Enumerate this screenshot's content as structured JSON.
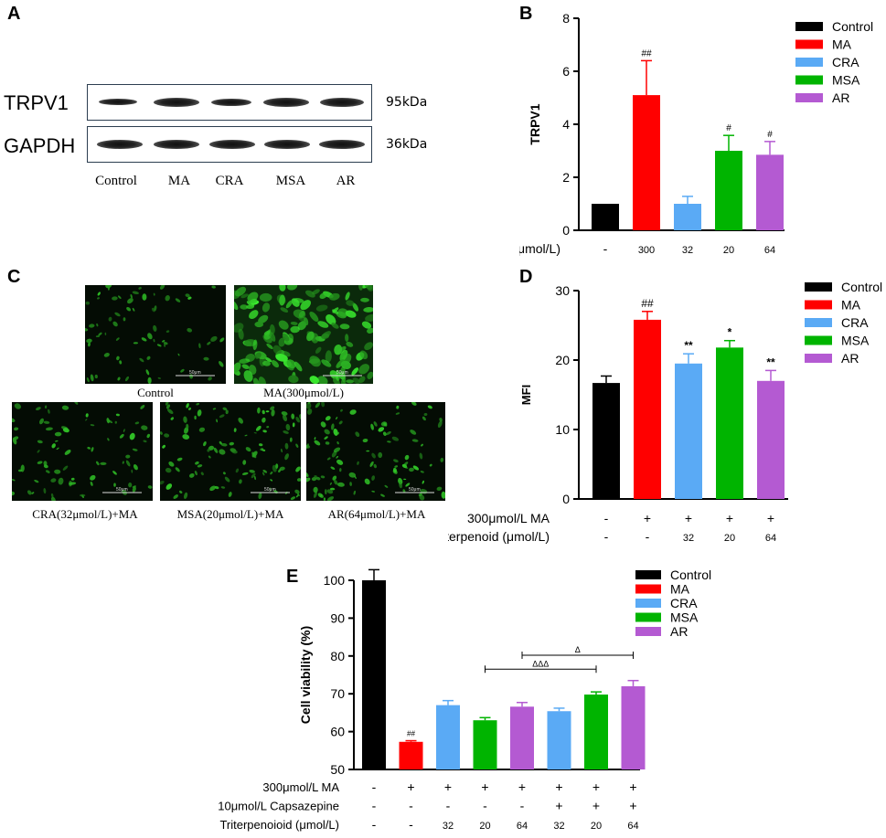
{
  "panels": {
    "a": "A",
    "b": "B",
    "c": "C",
    "d": "D",
    "e": "E"
  },
  "blot": {
    "rows": [
      {
        "label": "TRPV1",
        "kda": "95kDa"
      },
      {
        "label": "GAPDH",
        "kda": "36kDa"
      }
    ],
    "lanes": [
      "Control",
      "MA",
      "CRA",
      "MSA",
      "AR"
    ]
  },
  "micrographs": {
    "captions": [
      "Control",
      "MA(300μmol/L)",
      "CRA(32μmol/L)+MA",
      "MSA(20μmol/L)+MA",
      "AR(64μmol/L)+MA"
    ],
    "scale": "50μm"
  },
  "colors": {
    "Control": "#000000",
    "MA": "#ff0000",
    "CRA": "#5aaaf5",
    "MSA": "#00b400",
    "AR": "#b45ad2"
  },
  "chart_data": [
    {
      "id": "B",
      "type": "bar",
      "ylabel": "TRPV1",
      "ylim": [
        0,
        8
      ],
      "yticks": [
        0,
        2,
        4,
        6,
        8
      ],
      "categories": [
        "Control",
        "MA",
        "CRA",
        "MSA",
        "AR"
      ],
      "values": [
        1.0,
        5.1,
        1.0,
        3.0,
        2.85
      ],
      "errors": [
        0.0,
        1.3,
        0.28,
        0.58,
        0.5
      ],
      "annotations": [
        "",
        "##",
        "",
        "#",
        "#"
      ],
      "row_labels": [
        {
          "label": "c (μmol/L)",
          "values": [
            "-",
            "300",
            "32",
            "20",
            "64"
          ]
        }
      ],
      "legend": [
        "Control",
        "MA",
        "CRA",
        "MSA",
        "AR"
      ],
      "legend_position": "right"
    },
    {
      "id": "D",
      "type": "bar",
      "ylabel": "MFI",
      "ylim": [
        0,
        30
      ],
      "yticks": [
        0,
        10,
        20,
        30
      ],
      "categories": [
        "Control",
        "MA",
        "CRA",
        "MSA",
        "AR"
      ],
      "values": [
        16.7,
        25.8,
        19.5,
        21.8,
        17.0
      ],
      "errors": [
        1.0,
        1.2,
        1.4,
        1.0,
        1.5
      ],
      "annotations": [
        "",
        "##",
        "**",
        "*",
        "**"
      ],
      "row_labels": [
        {
          "label": "300μmol/L MA",
          "values": [
            "-",
            "+",
            "+",
            "+",
            "+"
          ]
        },
        {
          "label": "Triterpenoid (μmol/L)",
          "values": [
            "-",
            "-",
            "32",
            "20",
            "64"
          ]
        }
      ],
      "legend": [
        "Control",
        "MA",
        "CRA",
        "MSA",
        "AR"
      ],
      "legend_position": "right"
    },
    {
      "id": "E",
      "type": "bar",
      "ylabel": "Cell viability (%)",
      "ylim": [
        50,
        100
      ],
      "yticks": [
        50,
        60,
        70,
        80,
        90,
        100
      ],
      "categories": [
        "Control",
        "MA",
        "CRA",
        "MSA",
        "AR",
        "CRA",
        "MSA",
        "AR"
      ],
      "values": [
        100.0,
        57.3,
        67.0,
        63.0,
        66.6,
        65.4,
        69.8,
        72.0
      ],
      "errors": [
        2.8,
        0.3,
        1.2,
        0.7,
        1.1,
        0.8,
        0.7,
        1.5
      ],
      "annotations": [
        "",
        "##",
        "",
        "",
        "",
        "",
        "",
        ""
      ],
      "brackets": [
        {
          "from": 3,
          "to": 6,
          "level": 76.5,
          "label": "ΔΔΔ"
        },
        {
          "from": 4,
          "to": 7,
          "level": 80.2,
          "label": "Δ"
        }
      ],
      "row_labels": [
        {
          "label": "300μmol/L MA",
          "values": [
            "-",
            "+",
            "+",
            "+",
            "+",
            "+",
            "+",
            "+"
          ]
        },
        {
          "label": "10μmol/L Capsazepine",
          "values": [
            "-",
            "-",
            "-",
            "-",
            "-",
            "+",
            "+",
            "+"
          ]
        },
        {
          "label": "Triterpenoioid (μmol/L)",
          "values": [
            "-",
            "-",
            "32",
            "20",
            "64",
            "32",
            "20",
            "64"
          ]
        }
      ],
      "legend": [
        "Control",
        "MA",
        "CRA",
        "MSA",
        "AR"
      ],
      "legend_position": "top-right"
    }
  ]
}
